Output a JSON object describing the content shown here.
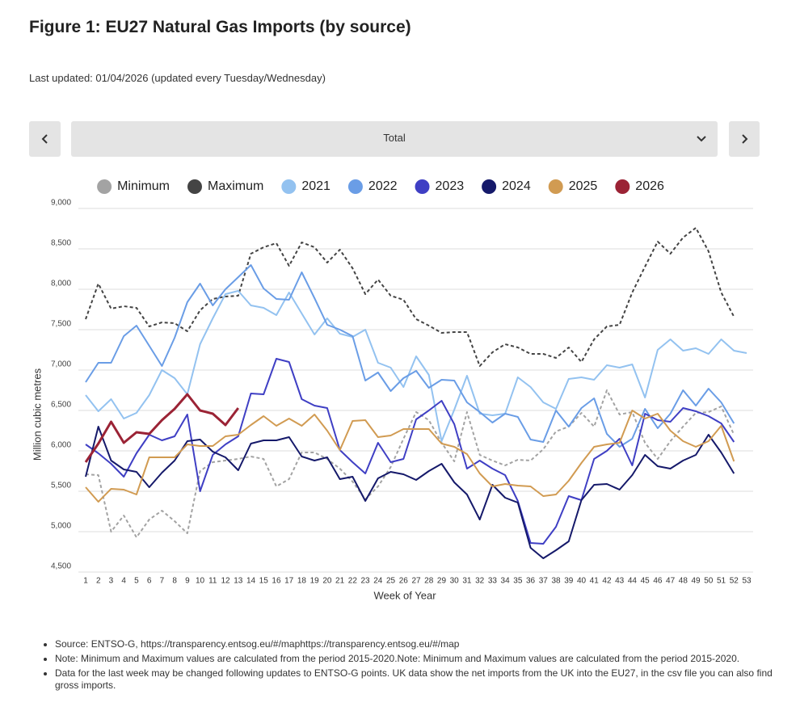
{
  "title": "Figure 1: EU27 Natural Gas Imports (by source)",
  "updated": "Last updated: 01/04/2026 (updated every Tuesday/Wednesday)",
  "selector": "Total",
  "notes": [
    "Source: ENTSO-G,  https://transparency.entsog.eu/#/maphttps://transparency.entsog.eu/#/map",
    "Note: Minimum and Maximum values are calculated from the period 2015-2020.Note: Minimum and Maximum values are calculated from the period 2015-2020.",
    "Data for the last week may be changed following updates to ENTSO-G points. UK data show the net imports from the UK into the EU27, in the csv file you can also find gross imports."
  ],
  "chart_data": {
    "type": "line",
    "x_label": "Week of Year",
    "y_label": "Million cubic metres",
    "categories": [
      1,
      2,
      3,
      4,
      5,
      6,
      7,
      8,
      9,
      10,
      11,
      12,
      13,
      14,
      15,
      16,
      17,
      18,
      19,
      20,
      21,
      22,
      23,
      24,
      25,
      26,
      27,
      28,
      29,
      30,
      31,
      32,
      33,
      34,
      35,
      36,
      37,
      38,
      39,
      40,
      41,
      42,
      43,
      44,
      45,
      46,
      47,
      48,
      49,
      50,
      51,
      52,
      53
    ],
    "ylim": [
      4500,
      9000
    ],
    "yticks": [
      {
        "value": 4500,
        "label": "4,500"
      },
      {
        "value": 5000,
        "label": "5,000"
      },
      {
        "value": 5500,
        "label": "5,500"
      },
      {
        "value": 6000,
        "label": "6,000"
      },
      {
        "value": 6500,
        "label": "6,500"
      },
      {
        "value": 7000,
        "label": "7,000"
      },
      {
        "value": 7500,
        "label": "7,500"
      },
      {
        "value": 8000,
        "label": "8,000"
      },
      {
        "value": 8500,
        "label": "8,500"
      },
      {
        "value": 9000,
        "label": "9,000"
      }
    ],
    "grid": true,
    "legend": "top",
    "series": [
      {
        "name": "Minimum",
        "color": "#a3a3a3",
        "dashed": true,
        "values": [
          5710,
          5700,
          5000,
          5200,
          4930,
          5150,
          5260,
          5130,
          4980,
          5750,
          5860,
          5880,
          5900,
          5930,
          5900,
          5560,
          5650,
          5980,
          5980,
          5900,
          5780,
          5620,
          5400,
          5560,
          5800,
          6150,
          6480,
          6380,
          6100,
          5870,
          6480,
          5950,
          5880,
          5820,
          5890,
          5880,
          6020,
          6240,
          6300,
          6470,
          6300,
          6750,
          6450,
          6480,
          6100,
          5900,
          6120,
          6300,
          6470,
          6480,
          6550,
          6200,
          null
        ]
      },
      {
        "name": "Maximum",
        "color": "#444444",
        "dashed": true,
        "values": [
          7630,
          8070,
          7760,
          7790,
          7770,
          7540,
          7590,
          7580,
          7480,
          7740,
          7880,
          7910,
          7920,
          8440,
          8520,
          8570,
          8290,
          8580,
          8520,
          8330,
          8490,
          8260,
          7940,
          8120,
          7920,
          7870,
          7630,
          7550,
          7460,
          7470,
          7470,
          7050,
          7220,
          7320,
          7280,
          7200,
          7200,
          7150,
          7280,
          7100,
          7380,
          7540,
          7560,
          7960,
          8280,
          8590,
          8440,
          8640,
          8760,
          8470,
          7960,
          7660,
          null
        ]
      },
      {
        "name": "2021",
        "color": "#93c2f0",
        "values": [
          6690,
          6490,
          6640,
          6400,
          6470,
          6690,
          7000,
          6900,
          6700,
          7320,
          7640,
          7940,
          7980,
          7800,
          7770,
          7680,
          7960,
          7700,
          7440,
          7640,
          7450,
          7410,
          7500,
          7090,
          7030,
          6790,
          7170,
          6940,
          6120,
          6510,
          6930,
          6460,
          6440,
          6460,
          6910,
          6790,
          6600,
          6520,
          6890,
          6910,
          6880,
          7060,
          7030,
          7070,
          6660,
          7250,
          7380,
          7240,
          7270,
          7200,
          7380,
          7240,
          7210
        ]
      },
      {
        "name": "2022",
        "color": "#6a9de6",
        "values": [
          6850,
          7090,
          7090,
          7420,
          7550,
          7300,
          7050,
          7400,
          7840,
          8070,
          7800,
          8000,
          8150,
          8300,
          8010,
          7880,
          7870,
          8210,
          7890,
          7560,
          7500,
          7420,
          6870,
          6970,
          6740,
          6900,
          6990,
          6780,
          6880,
          6870,
          6600,
          6480,
          6350,
          6460,
          6420,
          6140,
          6110,
          6500,
          6300,
          6530,
          6650,
          6210,
          6050,
          6150,
          6520,
          6280,
          6460,
          6750,
          6560,
          6770,
          6600,
          6340,
          null
        ]
      },
      {
        "name": "2023",
        "color": "#3f3fc4",
        "values": [
          6080,
          5970,
          5840,
          5680,
          5970,
          6200,
          6130,
          6180,
          6450,
          5500,
          5950,
          6080,
          6180,
          6710,
          6700,
          7140,
          7100,
          6640,
          6560,
          6530,
          6010,
          5860,
          5720,
          6100,
          5860,
          5900,
          6390,
          6500,
          6620,
          6330,
          5780,
          5880,
          5780,
          5700,
          5380,
          4860,
          4850,
          5060,
          5440,
          5390,
          5900,
          6000,
          6150,
          5820,
          6460,
          6380,
          6360,
          6530,
          6490,
          6430,
          6340,
          6110,
          null
        ]
      },
      {
        "name": "2024",
        "color": "#15196a",
        "values": [
          5680,
          6300,
          5880,
          5770,
          5740,
          5550,
          5730,
          5880,
          6120,
          6140,
          5990,
          5920,
          5760,
          6090,
          6130,
          6130,
          6170,
          5930,
          5880,
          5920,
          5650,
          5680,
          5380,
          5660,
          5740,
          5710,
          5640,
          5750,
          5840,
          5610,
          5460,
          5150,
          5580,
          5420,
          5360,
          4800,
          4670,
          4770,
          4880,
          5390,
          5580,
          5590,
          5520,
          5700,
          5950,
          5810,
          5780,
          5880,
          5950,
          6200,
          5980,
          5720,
          null
        ]
      },
      {
        "name": "2025",
        "color": "#d19b52",
        "values": [
          5550,
          5370,
          5530,
          5520,
          5460,
          5920,
          5920,
          5920,
          6080,
          6060,
          6060,
          6180,
          6200,
          6320,
          6430,
          6310,
          6400,
          6310,
          6450,
          6250,
          6010,
          6370,
          6380,
          6170,
          6190,
          6270,
          6270,
          6270,
          6090,
          6050,
          5960,
          5720,
          5560,
          5590,
          5570,
          5560,
          5440,
          5460,
          5630,
          5850,
          6050,
          6080,
          6100,
          6500,
          6400,
          6460,
          6250,
          6120,
          6050,
          6120,
          6310,
          5870,
          null
        ]
      },
      {
        "name": "2026",
        "color": "#9b2335",
        "width": 3,
        "values": [
          5860,
          6090,
          6360,
          6100,
          6230,
          6210,
          6380,
          6520,
          6700,
          6500,
          6460,
          6320,
          6530,
          null,
          null,
          null,
          null,
          null,
          null,
          null,
          null,
          null,
          null,
          null,
          null,
          null,
          null,
          null,
          null,
          null,
          null,
          null,
          null,
          null,
          null,
          null,
          null,
          null,
          null,
          null,
          null,
          null,
          null,
          null,
          null,
          null,
          null,
          null,
          null,
          null,
          null,
          null,
          null
        ]
      }
    ]
  }
}
